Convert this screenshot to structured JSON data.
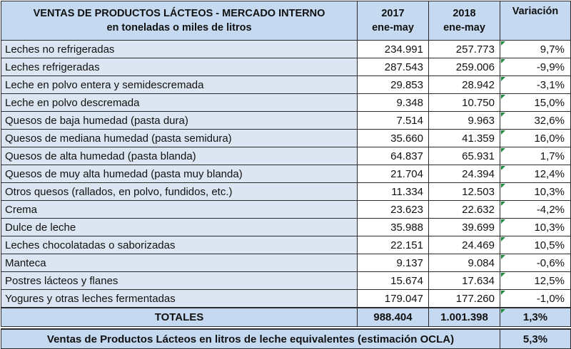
{
  "header": {
    "title_line1": "VENTAS DE PRODUCTOS LÁCTEOS - MERCADO INTERNO",
    "title_line2": "en toneladas o miles de litros",
    "col2017_year": "2017",
    "col2017_period": "ene-may",
    "col2018_year": "2018",
    "col2018_period": "ene-may",
    "col_variation": "Variación"
  },
  "rows": [
    {
      "label": "Leches no refrigeradas",
      "v2017": "234.991",
      "v2018": "257.773",
      "variation": "9,7%"
    },
    {
      "label": "Leches refrigeradas",
      "v2017": "287.543",
      "v2018": "259.006",
      "variation": "-9,9%"
    },
    {
      "label": "Leche en polvo entera y semidescremada",
      "v2017": "29.853",
      "v2018": "28.942",
      "variation": "-3,1%"
    },
    {
      "label": "Leche en polvo descremada",
      "v2017": "9.348",
      "v2018": "10.750",
      "variation": "15,0%"
    },
    {
      "label": "Quesos de baja humedad (pasta dura)",
      "v2017": "7.514",
      "v2018": "9.963",
      "variation": "32,6%"
    },
    {
      "label": "Quesos de mediana humedad (pasta semidura)",
      "v2017": "35.660",
      "v2018": "41.359",
      "variation": "16,0%"
    },
    {
      "label": "Quesos de alta humedad (pasta blanda)",
      "v2017": "64.837",
      "v2018": "65.931",
      "variation": "1,7%"
    },
    {
      "label": "Quesos de muy alta humedad (pasta muy blanda)",
      "v2017": "21.704",
      "v2018": "24.394",
      "variation": "12,4%"
    },
    {
      "label": "Otros quesos (rallados, en polvo, fundidos, etc.)",
      "v2017": "11.334",
      "v2018": "12.503",
      "variation": "10,3%"
    },
    {
      "label": "Crema",
      "v2017": "23.623",
      "v2018": "22.632",
      "variation": "-4,2%"
    },
    {
      "label": "Dulce de leche",
      "v2017": "35.988",
      "v2018": "39.699",
      "variation": "10,3%"
    },
    {
      "label": "Leches chocolatadas o saborizadas",
      "v2017": "22.151",
      "v2018": "24.469",
      "variation": "10,5%"
    },
    {
      "label": "Manteca",
      "v2017": "9.137",
      "v2018": "9.084",
      "variation": "-0,6%"
    },
    {
      "label": "Postres lácteos y flanes",
      "v2017": "15.674",
      "v2018": "17.634",
      "variation": "12,5%"
    },
    {
      "label": "Yogures y otras leches fermentadas",
      "v2017": "179.047",
      "v2018": "177.260",
      "variation": "-1,0%"
    }
  ],
  "totals": {
    "label": "TOTALES",
    "v2017": "988.404",
    "v2018": "1.001.398",
    "variation": "1,3%"
  },
  "footer": {
    "label": "Ventas de Productos Lácteos en litros de leche equivalentes (estimación OCLA)",
    "variation": "5,3%"
  },
  "colors": {
    "header_bg": "#c5d9f1",
    "label_bg": "#dce6f2",
    "flag": "#1e8b3a"
  }
}
